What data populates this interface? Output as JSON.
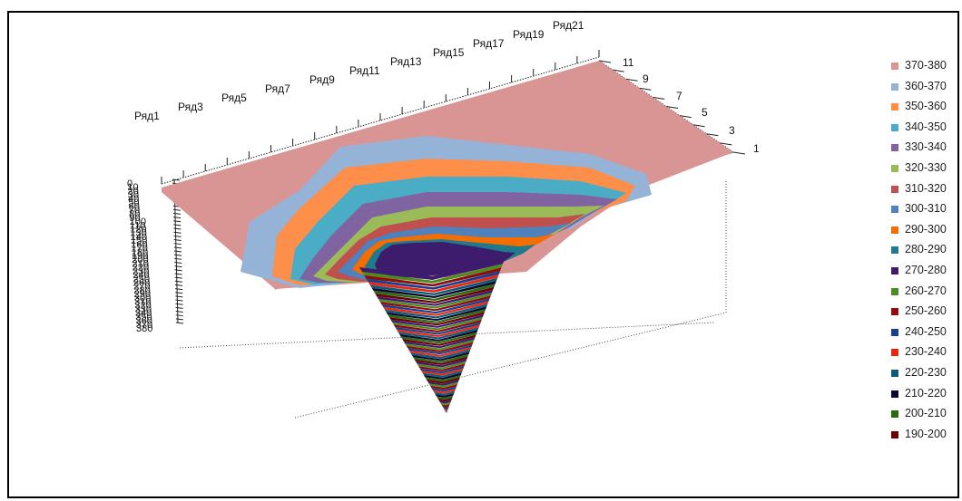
{
  "chart_data": {
    "type": "surface",
    "title": "",
    "series_labels": [
      "Ряд1",
      "Ряд3",
      "Ряд5",
      "Ряд7",
      "Ряд9",
      "Ряд11",
      "Ряд13",
      "Ряд15",
      "Ряд17",
      "Ряд19",
      "Ряд21"
    ],
    "x_labels": [
      "11",
      "9",
      "7",
      "5",
      "3",
      "1"
    ],
    "z_labels": [
      "0",
      "10",
      "20",
      "30",
      "40",
      "50",
      "60",
      "70",
      "80",
      "90",
      "100",
      "110",
      "120",
      "130",
      "140",
      "150",
      "160",
      "170",
      "180",
      "190",
      "200",
      "210",
      "220",
      "230",
      "240",
      "250",
      "260",
      "270",
      "280",
      "290",
      "300",
      "310",
      "320",
      "330",
      "340",
      "350",
      "360",
      "370",
      "380"
    ],
    "zlim": [
      0,
      380
    ],
    "depth_min": 0,
    "depth_max": 380,
    "deepest_value": 190,
    "legend_position": "right",
    "legend": [
      {
        "label": "370-380",
        "color": "#d99594"
      },
      {
        "label": "360-370",
        "color": "#95b3d7"
      },
      {
        "label": "350-360",
        "color": "#fd8f4b"
      },
      {
        "label": "340-350",
        "color": "#4bacc6"
      },
      {
        "label": "330-340",
        "color": "#8064a2"
      },
      {
        "label": "320-330",
        "color": "#9bbb59"
      },
      {
        "label": "310-320",
        "color": "#c0504d"
      },
      {
        "label": "300-310",
        "color": "#4f81bd"
      },
      {
        "label": "290-300",
        "color": "#f46d00"
      },
      {
        "label": "280-290",
        "color": "#1f7a8c"
      },
      {
        "label": "270-280",
        "color": "#3d1c6e"
      },
      {
        "label": "260-270",
        "color": "#4e8a1e"
      },
      {
        "label": "250-260",
        "color": "#8b0d0d"
      },
      {
        "label": "240-250",
        "color": "#1a3f8f"
      },
      {
        "label": "230-240",
        "color": "#e8260c"
      },
      {
        "label": "220-230",
        "color": "#0e5a7a"
      },
      {
        "label": "210-220",
        "color": "#0a0a2e"
      },
      {
        "label": "200-210",
        "color": "#2a6a0e"
      },
      {
        "label": "190-200",
        "color": "#6b0000"
      }
    ]
  }
}
